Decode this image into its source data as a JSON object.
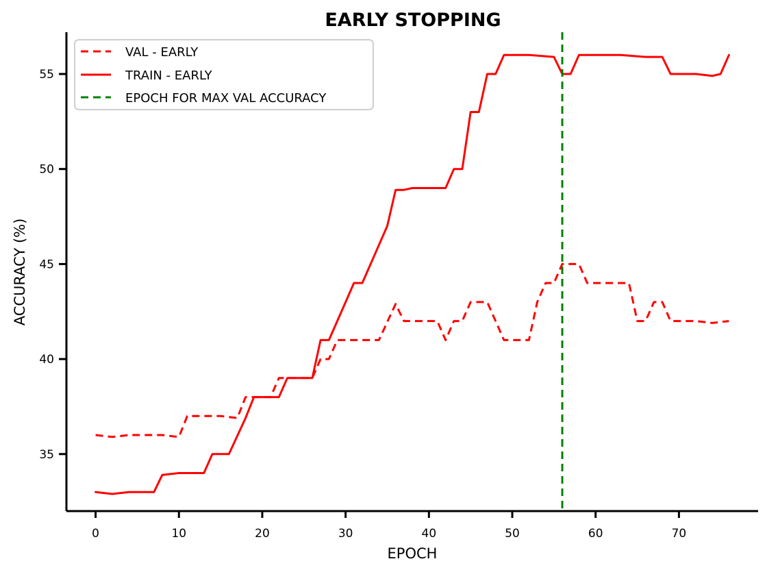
{
  "chart_data": {
    "type": "line",
    "title": "EARLY STOPPING",
    "xlabel": "EPOCH",
    "ylabel": "ACCURACY (%)",
    "xlim": [
      -3.5,
      79.5
    ],
    "ylim": [
      32,
      57.2
    ],
    "xticks": [
      0,
      10,
      20,
      30,
      40,
      50,
      60,
      70
    ],
    "yticks": [
      35,
      40,
      45,
      50,
      55
    ],
    "grid": false,
    "legend": "top-left",
    "series": [
      {
        "name": "VAL - EARLY",
        "style": "dashed",
        "color": "#ff0000",
        "x": [
          0,
          2,
          4,
          6,
          8,
          10,
          11,
          13,
          15,
          17,
          18,
          19,
          20,
          21,
          22,
          24,
          26,
          27,
          28,
          29,
          30,
          32,
          34,
          36,
          37,
          39,
          41,
          42,
          43,
          44,
          45,
          47,
          49,
          51,
          52,
          53,
          54,
          55,
          56,
          57,
          58,
          59,
          60,
          62,
          64,
          65,
          66,
          67,
          68,
          69,
          70,
          72,
          74,
          76
        ],
        "y": [
          36,
          35.9,
          36,
          36,
          36,
          35.9,
          37,
          37,
          37,
          36.9,
          38,
          38,
          38,
          38,
          39,
          39,
          39,
          40,
          40,
          41,
          41,
          41,
          41,
          42.9,
          42,
          42,
          42,
          41,
          42,
          42,
          43,
          43,
          41,
          41,
          41,
          43,
          44,
          44,
          45,
          45,
          45,
          44,
          44,
          44,
          44,
          42,
          42,
          43,
          43,
          42,
          42,
          42,
          41.9,
          42
        ]
      },
      {
        "name": "TRAIN - EARLY",
        "style": "solid",
        "color": "#ff0000",
        "x": [
          0,
          2,
          4,
          6,
          7,
          8,
          10,
          12,
          13,
          14,
          16,
          18,
          19,
          20,
          22,
          23,
          24,
          26,
          27,
          28,
          29,
          30,
          31,
          32,
          33,
          34,
          35,
          36,
          37,
          38,
          39,
          40,
          41,
          42,
          43,
          44,
          45,
          46,
          47,
          48,
          49,
          50,
          52,
          55,
          56,
          57,
          58,
          60,
          63,
          66,
          68,
          69,
          70,
          72,
          74,
          75,
          76
        ],
        "y": [
          33,
          32.9,
          33,
          33,
          33,
          33.9,
          34,
          34,
          34,
          35,
          35,
          36.9,
          38,
          38,
          38,
          39,
          39,
          39,
          41,
          41,
          42,
          43,
          44,
          44,
          45,
          46,
          47,
          48.9,
          48.9,
          49,
          49,
          49,
          49,
          49,
          50,
          50,
          53,
          53,
          55,
          55,
          56,
          56,
          56,
          55.9,
          55,
          55,
          56,
          56,
          56,
          55.9,
          55.9,
          55,
          55,
          55,
          54.9,
          55,
          56
        ]
      },
      {
        "name": "EPOCH FOR MAX VAL ACCURACY",
        "style": "dashed",
        "color": "#008000",
        "vline_x": 56
      }
    ]
  }
}
